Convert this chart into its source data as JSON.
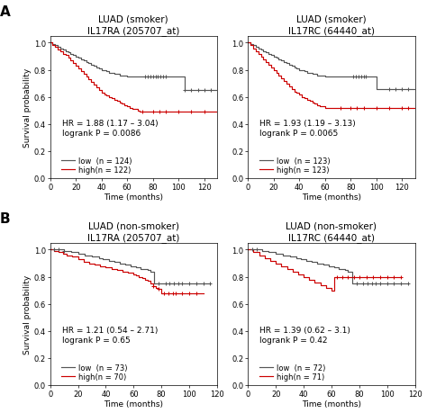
{
  "panels": [
    {
      "title1": "LUAD (smoker)",
      "title2": "IL17RA (205707_at)",
      "hr_text": "HR = 1.88 (1.17 – 3.04)",
      "logrank_text": "logrank P = 0.0086",
      "low_n": 124,
      "high_n": 122,
      "xlim": [
        0,
        130
      ],
      "xticks": [
        0,
        20,
        40,
        60,
        80,
        100,
        120
      ],
      "low_x": [
        0,
        2,
        4,
        6,
        8,
        10,
        12,
        14,
        16,
        18,
        20,
        22,
        24,
        26,
        28,
        30,
        32,
        34,
        36,
        38,
        40,
        42,
        44,
        46,
        48,
        50,
        52,
        54,
        56,
        58,
        60,
        62,
        64,
        66,
        68,
        70,
        72,
        74,
        76,
        78,
        80,
        82,
        84,
        86,
        88,
        90,
        100,
        101,
        102,
        103,
        104,
        105,
        110,
        115,
        120,
        125,
        130
      ],
      "low_y": [
        1.0,
        0.99,
        0.98,
        0.97,
        0.96,
        0.95,
        0.94,
        0.93,
        0.92,
        0.91,
        0.9,
        0.89,
        0.88,
        0.87,
        0.86,
        0.85,
        0.84,
        0.83,
        0.82,
        0.81,
        0.8,
        0.8,
        0.79,
        0.78,
        0.78,
        0.77,
        0.77,
        0.76,
        0.76,
        0.76,
        0.75,
        0.75,
        0.75,
        0.75,
        0.75,
        0.75,
        0.75,
        0.75,
        0.75,
        0.75,
        0.75,
        0.75,
        0.75,
        0.75,
        0.75,
        0.75,
        0.75,
        0.75,
        0.75,
        0.75,
        0.75,
        0.65,
        0.65,
        0.65,
        0.65,
        0.65,
        0.65
      ],
      "high_x": [
        0,
        2,
        4,
        6,
        8,
        10,
        12,
        14,
        16,
        18,
        20,
        22,
        24,
        26,
        28,
        30,
        32,
        34,
        36,
        38,
        40,
        42,
        44,
        46,
        48,
        50,
        52,
        54,
        56,
        58,
        60,
        62,
        64,
        66,
        68,
        70,
        72,
        74,
        76,
        78,
        80,
        90,
        100,
        110,
        120,
        125,
        130
      ],
      "high_y": [
        1.0,
        0.98,
        0.97,
        0.95,
        0.94,
        0.92,
        0.91,
        0.89,
        0.87,
        0.85,
        0.83,
        0.81,
        0.79,
        0.77,
        0.75,
        0.73,
        0.71,
        0.69,
        0.67,
        0.65,
        0.63,
        0.62,
        0.61,
        0.6,
        0.59,
        0.58,
        0.57,
        0.56,
        0.55,
        0.54,
        0.53,
        0.52,
        0.51,
        0.51,
        0.5,
        0.49,
        0.49,
        0.49,
        0.49,
        0.49,
        0.49,
        0.49,
        0.49,
        0.49,
        0.49,
        0.49,
        0.49
      ],
      "low_cens_x": [
        74,
        76,
        78,
        80,
        82,
        84,
        86,
        88,
        90,
        105,
        110,
        115,
        120,
        125
      ],
      "low_cens_y": [
        0.75,
        0.75,
        0.75,
        0.75,
        0.75,
        0.75,
        0.75,
        0.75,
        0.75,
        0.65,
        0.65,
        0.65,
        0.65,
        0.65
      ],
      "high_cens_x": [
        72,
        80,
        85,
        90,
        100,
        110,
        120
      ],
      "high_cens_y": [
        0.49,
        0.49,
        0.49,
        0.49,
        0.49,
        0.49,
        0.49
      ]
    },
    {
      "title1": "LUAD (smoker)",
      "title2": "IL17RC (64440_at)",
      "hr_text": "HR = 1.93 (1.19 – 3.13)",
      "logrank_text": "logrank P = 0.0065",
      "low_n": 123,
      "high_n": 123,
      "xlim": [
        0,
        130
      ],
      "xticks": [
        0,
        20,
        40,
        60,
        80,
        100,
        120
      ],
      "low_x": [
        0,
        2,
        4,
        6,
        8,
        10,
        12,
        14,
        16,
        18,
        20,
        22,
        24,
        26,
        28,
        30,
        32,
        34,
        36,
        38,
        40,
        42,
        44,
        46,
        48,
        50,
        52,
        54,
        56,
        58,
        60,
        62,
        64,
        66,
        68,
        70,
        72,
        74,
        76,
        78,
        80,
        82,
        84,
        86,
        88,
        90,
        92,
        100,
        105,
        110,
        115,
        120,
        125,
        130
      ],
      "low_y": [
        1.0,
        0.99,
        0.98,
        0.97,
        0.96,
        0.95,
        0.94,
        0.93,
        0.92,
        0.91,
        0.9,
        0.89,
        0.88,
        0.87,
        0.86,
        0.85,
        0.84,
        0.83,
        0.82,
        0.81,
        0.8,
        0.8,
        0.79,
        0.78,
        0.78,
        0.77,
        0.77,
        0.76,
        0.76,
        0.76,
        0.75,
        0.75,
        0.75,
        0.75,
        0.75,
        0.75,
        0.75,
        0.75,
        0.75,
        0.75,
        0.75,
        0.75,
        0.75,
        0.75,
        0.75,
        0.75,
        0.75,
        0.66,
        0.66,
        0.66,
        0.66,
        0.66,
        0.66,
        0.66
      ],
      "high_x": [
        0,
        2,
        4,
        6,
        8,
        10,
        12,
        14,
        16,
        18,
        20,
        22,
        24,
        26,
        28,
        30,
        32,
        34,
        36,
        38,
        40,
        42,
        44,
        46,
        48,
        50,
        52,
        54,
        56,
        58,
        60,
        62,
        64,
        66,
        68,
        70,
        72,
        74,
        76,
        78,
        80,
        90,
        100,
        110,
        120,
        125,
        130
      ],
      "high_y": [
        1.0,
        0.98,
        0.96,
        0.94,
        0.92,
        0.9,
        0.88,
        0.86,
        0.84,
        0.82,
        0.8,
        0.78,
        0.76,
        0.74,
        0.72,
        0.7,
        0.68,
        0.66,
        0.64,
        0.63,
        0.62,
        0.6,
        0.59,
        0.58,
        0.57,
        0.56,
        0.55,
        0.54,
        0.53,
        0.53,
        0.52,
        0.52,
        0.52,
        0.52,
        0.52,
        0.52,
        0.52,
        0.52,
        0.52,
        0.52,
        0.52,
        0.52,
        0.52,
        0.52,
        0.52,
        0.52,
        0.52
      ],
      "low_cens_x": [
        82,
        84,
        86,
        88,
        90,
        92,
        110,
        115,
        120,
        125
      ],
      "low_cens_y": [
        0.75,
        0.75,
        0.75,
        0.75,
        0.75,
        0.75,
        0.66,
        0.66,
        0.66,
        0.66
      ],
      "high_cens_x": [
        72,
        80,
        85,
        90,
        100,
        110,
        120,
        125
      ],
      "high_cens_y": [
        0.52,
        0.52,
        0.52,
        0.52,
        0.52,
        0.52,
        0.52,
        0.52
      ]
    },
    {
      "title1": "LUAD (non-smoker)",
      "title2": "IL17RA (205707_at)",
      "hr_text": "HR = 1.21 (0.54 – 2.71)",
      "logrank_text": "logrank P = 0.65",
      "low_n": 73,
      "high_n": 70,
      "xlim": [
        0,
        120
      ],
      "xticks": [
        0,
        20,
        40,
        60,
        80,
        100,
        120
      ],
      "low_x": [
        0,
        3,
        6,
        10,
        15,
        20,
        25,
        30,
        35,
        38,
        42,
        46,
        50,
        54,
        58,
        62,
        65,
        68,
        70,
        72,
        75,
        78,
        80,
        83,
        86,
        89,
        92,
        95,
        100,
        105,
        110,
        115
      ],
      "low_y": [
        1.0,
        1.0,
        1.0,
        0.99,
        0.98,
        0.97,
        0.96,
        0.95,
        0.94,
        0.93,
        0.92,
        0.91,
        0.9,
        0.89,
        0.88,
        0.87,
        0.86,
        0.86,
        0.85,
        0.84,
        0.75,
        0.75,
        0.75,
        0.75,
        0.75,
        0.75,
        0.75,
        0.75,
        0.75,
        0.75,
        0.75,
        0.75
      ],
      "high_x": [
        0,
        3,
        6,
        9,
        12,
        16,
        20,
        24,
        28,
        32,
        36,
        40,
        44,
        48,
        52,
        56,
        60,
        62,
        64,
        66,
        68,
        70,
        72,
        74,
        76,
        78,
        80,
        82,
        85,
        88,
        90,
        95,
        100,
        105,
        110
      ],
      "high_y": [
        1.0,
        0.99,
        0.98,
        0.97,
        0.96,
        0.95,
        0.93,
        0.91,
        0.9,
        0.89,
        0.88,
        0.87,
        0.86,
        0.85,
        0.84,
        0.83,
        0.82,
        0.81,
        0.8,
        0.79,
        0.78,
        0.77,
        0.75,
        0.73,
        0.72,
        0.71,
        0.68,
        0.68,
        0.68,
        0.68,
        0.68,
        0.68,
        0.68,
        0.68,
        0.68
      ],
      "low_cens_x": [
        3,
        6,
        10,
        78,
        83,
        86,
        89,
        92,
        95,
        100,
        105,
        110,
        115
      ],
      "low_cens_y": [
        1.0,
        1.0,
        0.99,
        0.75,
        0.75,
        0.75,
        0.75,
        0.75,
        0.75,
        0.75,
        0.75,
        0.75,
        0.75
      ],
      "high_cens_x": [
        74,
        78,
        82,
        85,
        88,
        90,
        95,
        100,
        105
      ],
      "high_cens_y": [
        0.73,
        0.71,
        0.68,
        0.68,
        0.68,
        0.68,
        0.68,
        0.68,
        0.68
      ]
    },
    {
      "title1": "LUAD (non-smoker)",
      "title2": "IL17RC (64440_at)",
      "hr_text": "HR = 1.39 (0.62 – 3.1)",
      "logrank_text": "logrank P = 0.42",
      "low_n": 72,
      "high_n": 71,
      "xlim": [
        0,
        120
      ],
      "xticks": [
        0,
        20,
        40,
        60,
        80,
        100,
        120
      ],
      "low_x": [
        0,
        3,
        6,
        10,
        15,
        20,
        25,
        30,
        35,
        38,
        42,
        46,
        50,
        54,
        58,
        62,
        65,
        68,
        70,
        72,
        75,
        78,
        80,
        83,
        86,
        89,
        92,
        95,
        100,
        105,
        110,
        115
      ],
      "low_y": [
        1.0,
        1.0,
        1.0,
        0.99,
        0.98,
        0.97,
        0.96,
        0.95,
        0.94,
        0.93,
        0.92,
        0.91,
        0.9,
        0.89,
        0.88,
        0.87,
        0.86,
        0.86,
        0.85,
        0.84,
        0.75,
        0.75,
        0.75,
        0.75,
        0.75,
        0.75,
        0.75,
        0.75,
        0.75,
        0.75,
        0.75,
        0.75
      ],
      "high_x": [
        0,
        4,
        8,
        12,
        16,
        20,
        24,
        28,
        32,
        36,
        40,
        44,
        48,
        52,
        56,
        60,
        62,
        64,
        65,
        68,
        70,
        72,
        74,
        76,
        78,
        80,
        85,
        90,
        95,
        100,
        105,
        110
      ],
      "high_y": [
        1.0,
        0.98,
        0.96,
        0.94,
        0.92,
        0.9,
        0.88,
        0.86,
        0.84,
        0.82,
        0.8,
        0.78,
        0.76,
        0.74,
        0.72,
        0.7,
        0.8,
        0.8,
        0.8,
        0.8,
        0.8,
        0.8,
        0.8,
        0.8,
        0.8,
        0.8,
        0.8,
        0.8,
        0.8,
        0.8,
        0.8,
        0.8
      ],
      "low_cens_x": [
        3,
        6,
        78,
        83,
        86,
        89,
        92,
        95,
        100,
        105,
        110,
        115
      ],
      "low_cens_y": [
        1.0,
        1.0,
        0.75,
        0.75,
        0.75,
        0.75,
        0.75,
        0.75,
        0.75,
        0.75,
        0.75,
        0.75
      ],
      "high_cens_x": [
        64,
        68,
        72,
        76,
        80,
        85,
        90,
        95,
        100,
        105,
        110
      ],
      "high_cens_y": [
        0.8,
        0.8,
        0.8,
        0.8,
        0.8,
        0.8,
        0.8,
        0.8,
        0.8,
        0.8,
        0.8
      ]
    }
  ],
  "panel_labels": [
    "A",
    "",
    "B",
    ""
  ],
  "low_color": "#555555",
  "high_color": "#cc0000",
  "bg_color": "#ffffff",
  "ylabel": "Survival probability",
  "xlabel": "Time (months)",
  "yticks": [
    0.0,
    0.2,
    0.4,
    0.6,
    0.8,
    1.0
  ],
  "title_fontsize": 7.5,
  "axis_label_fontsize": 6.5,
  "tick_fontsize": 6.0,
  "annotation_fontsize": 6.5,
  "legend_fontsize": 6.0,
  "panel_label_fontsize": 11
}
